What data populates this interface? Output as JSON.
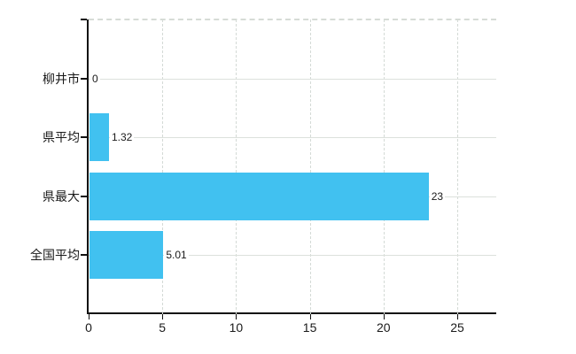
{
  "chart_data": {
    "type": "bar",
    "orientation": "horizontal",
    "title": "",
    "xlabel": "",
    "ylabel": "",
    "categories": [
      "柳井市",
      "県平均",
      "県最大",
      "全国平均"
    ],
    "values": [
      0,
      1.32,
      23,
      5.01
    ],
    "value_labels": [
      "0",
      "1.32",
      "23",
      "5.01"
    ],
    "x_tick_labels": [
      "0",
      "5",
      "10",
      "15",
      "20",
      "25"
    ],
    "x_tick_values": [
      0,
      5,
      10,
      15,
      20,
      25
    ],
    "xlim": [
      0,
      27.6
    ],
    "grid": true,
    "legend": "none",
    "colors": {
      "bar": "#41c1f0",
      "axis": "#111111",
      "gridline_h": "#dce1dc",
      "gridline_v": "#d4dad6",
      "text": "#1a1a1a",
      "background": "#ffffff"
    }
  }
}
